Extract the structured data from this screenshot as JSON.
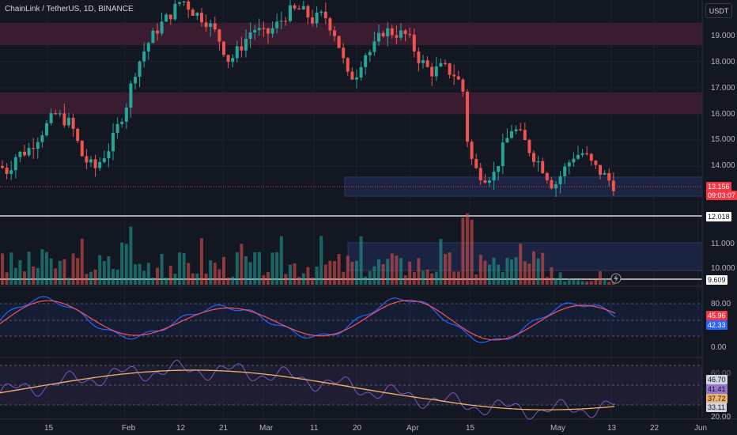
{
  "header": {
    "symbol_info": "ChainLink / TetherUS, 1D, BINANCE"
  },
  "currency_button": {
    "label": "USDT"
  },
  "price_axis": {
    "ticks": [
      "19.000",
      "18.000",
      "17.000",
      "16.000",
      "15.000",
      "14.000",
      "11.000",
      "10.000"
    ]
  },
  "price_tags": {
    "last_price": "13.156",
    "countdown": "09:03:07",
    "line_12": "12.018",
    "line_9": "9.609"
  },
  "oscillator_1": {
    "ticks": [
      "80.00",
      "0.00"
    ],
    "value_k": "45.96",
    "value_d": "42.33"
  },
  "oscillator_2": {
    "ticks": [
      "60.00",
      "46.70",
      "41.41",
      "37.72",
      "33.11",
      "20.00"
    ]
  },
  "time_axis": {
    "labels": [
      "15",
      "Feb",
      "12",
      "21",
      "Mar",
      "11",
      "20",
      "Apr",
      "15",
      "May",
      "13",
      "22",
      "Jun"
    ]
  },
  "colors": {
    "background": "#131722",
    "up": "#26a69a",
    "down": "#ef5350",
    "resistance_zone": "#3f1d33",
    "support_zone": "#1a2440",
    "osc_k": "#2962ff",
    "osc_d": "#f7525f",
    "rsi": "#7e57c2",
    "rsi_ma": "#f0b16b"
  },
  "icons": {
    "replay": "lightning-icon"
  }
}
